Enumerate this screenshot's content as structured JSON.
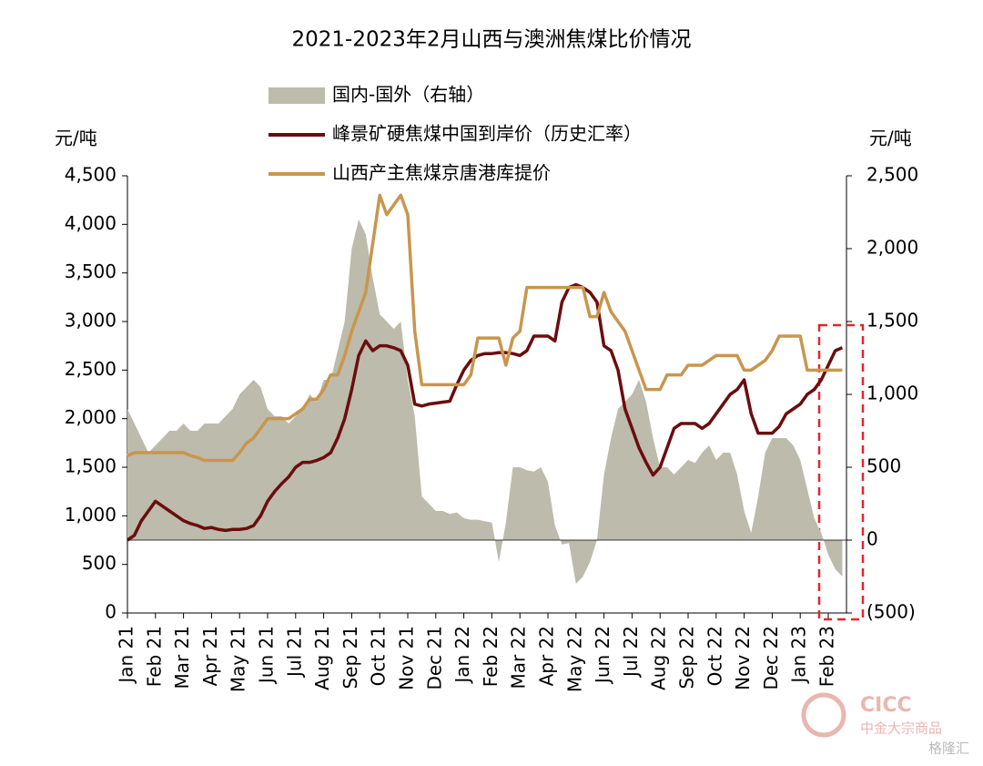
{
  "chart_data": {
    "type": "line",
    "title": "2021-2023年2月山西与澳洲焦煤比价情况",
    "ylabel": "元/吨",
    "y2label": "元/吨",
    "categories": [
      "Jan 21",
      null,
      null,
      null,
      "Feb 21",
      null,
      null,
      null,
      "Mar 21",
      null,
      null,
      null,
      "Apr 21",
      null,
      null,
      null,
      "May 21",
      null,
      null,
      null,
      "Jun 21",
      null,
      null,
      null,
      "Jul 21",
      null,
      null,
      null,
      "Aug 21",
      null,
      null,
      null,
      "Sep 21",
      null,
      null,
      null,
      "Oct 21",
      null,
      null,
      null,
      "Nov 21",
      null,
      null,
      null,
      "Dec 21",
      null,
      null,
      null,
      "Jan 22",
      null,
      null,
      null,
      "Feb 22",
      null,
      null,
      null,
      "Mar 22",
      null,
      null,
      null,
      "Apr 22",
      null,
      null,
      null,
      "May 22",
      null,
      null,
      null,
      "Jun 22",
      null,
      null,
      null,
      "Jul 22",
      null,
      null,
      null,
      "Aug 22",
      null,
      null,
      null,
      "Sep 22",
      null,
      null,
      null,
      "Oct 22",
      null,
      null,
      null,
      "Nov 22",
      null,
      null,
      null,
      "Dec 22",
      null,
      null,
      null,
      "Jan 23",
      null,
      null,
      null,
      "Feb 23",
      null,
      null
    ],
    "series": [
      {
        "name": "国内-国外（右轴）",
        "kind": "area",
        "axis": "y2",
        "color": "#bdbbab",
        "values": [
          900,
          800,
          700,
          600,
          650,
          700,
          750,
          750,
          800,
          750,
          750,
          800,
          800,
          800,
          850,
          900,
          1000,
          1050,
          1100,
          1050,
          900,
          850,
          850,
          800,
          850,
          900,
          1000,
          950,
          1100,
          1100,
          1300,
          1500,
          2000,
          2200,
          2100,
          1800,
          1550,
          1500,
          1450,
          1500,
          1100,
          850,
          300,
          250,
          200,
          200,
          180,
          190,
          150,
          140,
          140,
          130,
          120,
          -150,
          120,
          500,
          500,
          480,
          470,
          500,
          400,
          100,
          -30,
          -20,
          -300,
          -250,
          -150,
          0,
          450,
          700,
          900,
          950,
          1000,
          1100,
          950,
          700,
          500,
          500,
          450,
          500,
          550,
          530,
          600,
          650,
          550,
          600,
          600,
          450,
          200,
          50,
          300,
          600,
          700,
          700,
          700,
          650,
          550,
          350,
          150,
          50,
          -100,
          -200,
          -250
        ]
      },
      {
        "name": "峰景矿硬焦煤中国到岸价（历史汇率）",
        "kind": "line",
        "color": "#6b0d0d",
        "values": [
          750,
          800,
          950,
          1050,
          1150,
          1100,
          1050,
          1000,
          950,
          920,
          900,
          870,
          880,
          860,
          850,
          860,
          860,
          870,
          900,
          1000,
          1150,
          1250,
          1330,
          1400,
          1500,
          1550,
          1550,
          1570,
          1600,
          1650,
          1800,
          2000,
          2300,
          2650,
          2800,
          2700,
          2750,
          2750,
          2730,
          2700,
          2550,
          2150,
          2130,
          2150,
          2160,
          2170,
          2180,
          2350,
          2500,
          2600,
          2650,
          2670,
          2670,
          2680,
          2680,
          2670,
          2650,
          2700,
          2850,
          2850,
          2850,
          2800,
          3200,
          3350,
          3380,
          3350,
          3300,
          3200,
          2750,
          2700,
          2500,
          2100,
          1900,
          1700,
          1550,
          1420,
          1500,
          1700,
          1900,
          1950,
          1950,
          1950,
          1900,
          1950,
          2050,
          2150,
          2250,
          2300,
          2400,
          2050,
          1850,
          1850,
          1850,
          1920,
          2050,
          2100,
          2150,
          2250,
          2300,
          2400,
          2550,
          2700,
          2730
        ]
      },
      {
        "name": "山西产主焦煤京唐港库提价",
        "kind": "line",
        "color": "#c8964e",
        "values": [
          1620,
          1650,
          1650,
          1650,
          1650,
          1650,
          1650,
          1650,
          1650,
          1620,
          1600,
          1570,
          1570,
          1570,
          1570,
          1570,
          1650,
          1750,
          1800,
          1900,
          2000,
          2000,
          2000,
          2000,
          2050,
          2100,
          2200,
          2200,
          2300,
          2450,
          2450,
          2650,
          2900,
          3100,
          3300,
          3800,
          4300,
          4100,
          4200,
          4300,
          4100,
          2900,
          2350,
          2350,
          2350,
          2350,
          2350,
          2350,
          2350,
          2450,
          2830,
          2830,
          2830,
          2830,
          2550,
          2830,
          2900,
          3350,
          3350,
          3350,
          3350,
          3350,
          3350,
          3350,
          3350,
          3350,
          3050,
          3050,
          3300,
          3100,
          3000,
          2900,
          2700,
          2500,
          2300,
          2300,
          2300,
          2450,
          2450,
          2450,
          2550,
          2550,
          2550,
          2600,
          2650,
          2650,
          2650,
          2650,
          2500,
          2500,
          2550,
          2600,
          2700,
          2850,
          2850,
          2850,
          2850,
          2500,
          2500,
          2500,
          2500,
          2500,
          2500
        ]
      }
    ],
    "ylim": [
      0,
      4500
    ],
    "yticks": [
      0,
      500,
      {
        "value": 1000,
        "label": "1,000"
      },
      {
        "value": 1500,
        "label": "1,500"
      },
      {
        "value": 2000,
        "label": "2,000"
      },
      {
        "value": 2500,
        "label": "2,500"
      },
      {
        "value": 3000,
        "label": "3,000"
      },
      {
        "value": 3500,
        "label": "3,500"
      },
      {
        "value": 4000,
        "label": "4,000"
      },
      {
        "value": 4500,
        "label": "4,500"
      }
    ],
    "y2lim": [
      -500,
      2500
    ],
    "y2ticks": [
      {
        "value": -500,
        "label": "(500)"
      },
      0,
      500,
      {
        "value": 1000,
        "label": "1,000"
      },
      {
        "value": 1500,
        "label": "1,500"
      },
      {
        "value": 2000,
        "label": "2,000"
      },
      {
        "value": 2500,
        "label": "2,500"
      }
    ],
    "watermark": [
      "CICC",
      "中金大宗商品",
      "格隆汇"
    ]
  }
}
